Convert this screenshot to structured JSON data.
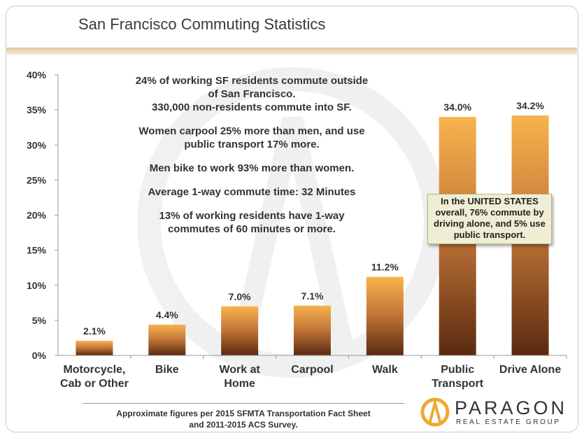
{
  "chart_data": {
    "type": "bar",
    "title": "San Francisco Commuting Statistics",
    "categories": [
      "Motorcycle,\nCab or Other",
      "Bike",
      "Work at\nHome",
      "Carpool",
      "Walk",
      "Public\nTransport",
      "Drive Alone"
    ],
    "values": [
      2.1,
      4.4,
      7.0,
      7.1,
      11.2,
      34.0,
      34.2
    ],
    "value_labels": [
      "2.1%",
      "4.4%",
      "7.0%",
      "7.1%",
      "11.2%",
      "34.0%",
      "34.2%"
    ],
    "ylim": [
      0,
      40
    ],
    "yticks": [
      "0%",
      "5%",
      "10%",
      "15%",
      "20%",
      "25%",
      "30%",
      "35%",
      "40%"
    ],
    "xlabel": "",
    "ylabel": "",
    "grid": false,
    "bar_colors": {
      "top": "#f7b34d",
      "bottom": "#5a2a10"
    }
  },
  "annotations": {
    "notes": [
      "24% of working SF residents commute outside of San Francisco.",
      "330,000 non-residents commute into SF.",
      "Women carpool 25% more than men, and use public transport 17% more.",
      "Men bike to work 93% more than women.",
      "Average 1-way commute time: 32 Minutes",
      "13% of working residents have 1-way commutes of 60 minutes or more."
    ],
    "callout": "In the UNITED STATES overall, 76% commute by driving alone, and 5% use public transport."
  },
  "footer": {
    "source_line1": "Approximate figures per 2015 SFMTA Transportation Fact Sheet",
    "source_line2": "and 2011-2015 ACS Survey."
  },
  "logo": {
    "name": "PARAGON",
    "tagline": "REAL ESTATE GROUP",
    "icon": "paragon-logo-icon",
    "color": "#f0a830"
  }
}
